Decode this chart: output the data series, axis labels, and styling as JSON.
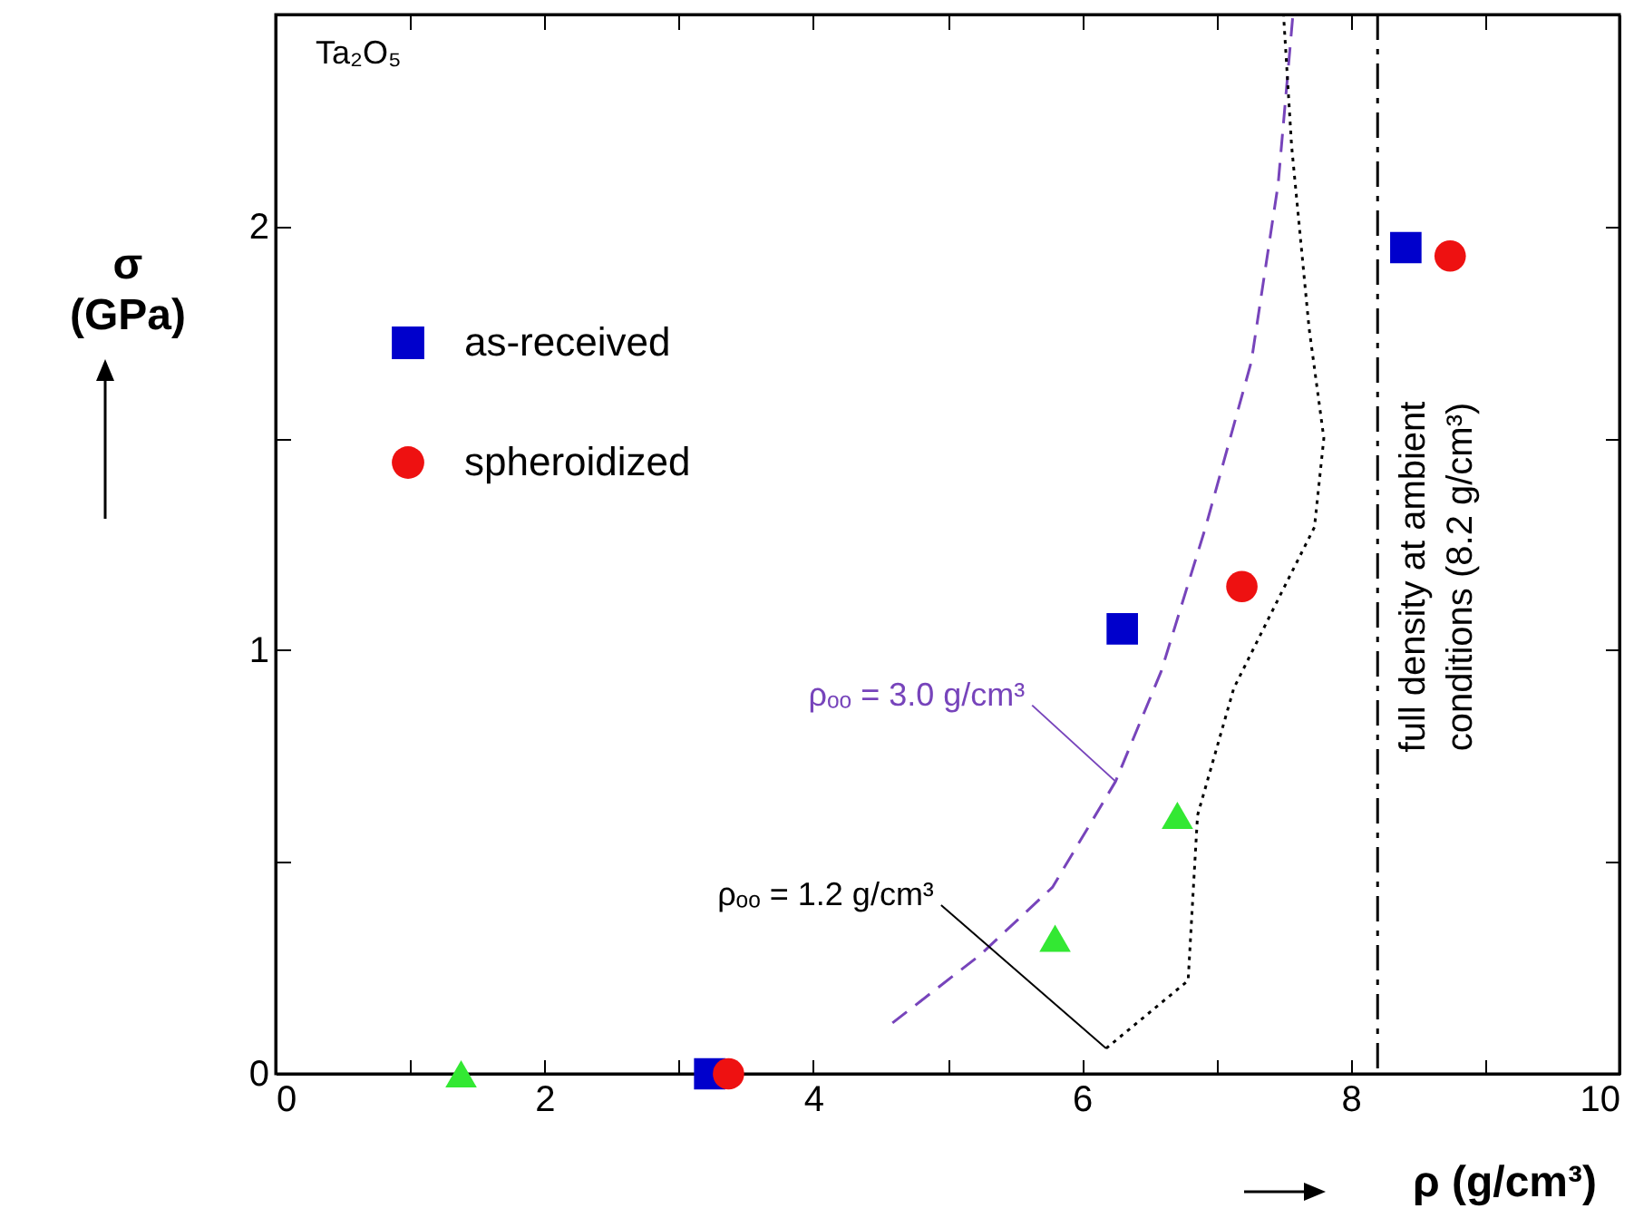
{
  "chart_data": {
    "type": "scatter",
    "xlabel": "ρ (g/cm³)",
    "ylabel": "σ\n(GPa)",
    "xlim": [
      0,
      10
    ],
    "ylim": [
      0,
      2.5
    ],
    "xticks": [
      0,
      {
        "value": 1,
        "label": null
      },
      2,
      {
        "value": 3,
        "label": null
      },
      4,
      {
        "value": 5,
        "label": null
      },
      6,
      {
        "value": 7,
        "label": null
      },
      8,
      {
        "value": 9,
        "label": null
      },
      10
    ],
    "yticks": [
      0,
      {
        "value": 0.5,
        "label": null
      },
      1,
      {
        "value": 1.5,
        "label": null
      },
      2
    ],
    "grid": false,
    "legend": "top left",
    "annotations": [
      "Ta₂O₅"
    ],
    "ref_lines": [
      {
        "axis": "x",
        "value": 8.2,
        "label": "full density at ambient\nconditions (8.2 g/cm³)",
        "line_style": "dashdot",
        "color": "#000000"
      }
    ],
    "series": [
      {
        "type": "scatter",
        "marker": "triangle",
        "color": "#33e833",
        "x": [
          1.38,
          5.8,
          6.71
        ],
        "values": [
          0,
          0.32,
          0.61
        ]
      },
      {
        "type": "scatter",
        "marker": "square",
        "name": "as-received",
        "color": "#0000cc",
        "x": [
          3.23,
          6.3,
          8.41
        ],
        "values": [
          0,
          1.05,
          1.95
        ]
      },
      {
        "type": "scatter",
        "marker": "circle",
        "name": "spheroidized",
        "color": "#ee1111",
        "x": [
          3.37,
          7.19,
          8.74
        ],
        "values": [
          0,
          1.15,
          1.93
        ]
      },
      {
        "type": "line",
        "line_style": "dashed",
        "name": "ρₒₒ = 3.0 g/cm³",
        "color": "#7744bb",
        "x": [
          4.59,
          5.24,
          5.78,
          6.25,
          6.59,
          6.92,
          7.26,
          7.46,
          7.57
        ],
        "values": [
          0.12,
          0.28,
          0.44,
          0.69,
          0.95,
          1.29,
          1.68,
          2.1,
          2.5
        ]
      },
      {
        "type": "line",
        "line_style": "dotted",
        "name": "ρₒₒ = 1.2 g/cm³",
        "color": "#000000",
        "x": [
          6.18,
          6.79,
          6.86,
          7.13,
          7.46,
          7.73,
          7.8,
          7.69,
          7.56,
          7.5
        ],
        "values": [
          0.06,
          0.22,
          0.61,
          0.91,
          1.12,
          1.29,
          1.5,
          1.76,
          2.19,
          2.5
        ]
      }
    ]
  }
}
